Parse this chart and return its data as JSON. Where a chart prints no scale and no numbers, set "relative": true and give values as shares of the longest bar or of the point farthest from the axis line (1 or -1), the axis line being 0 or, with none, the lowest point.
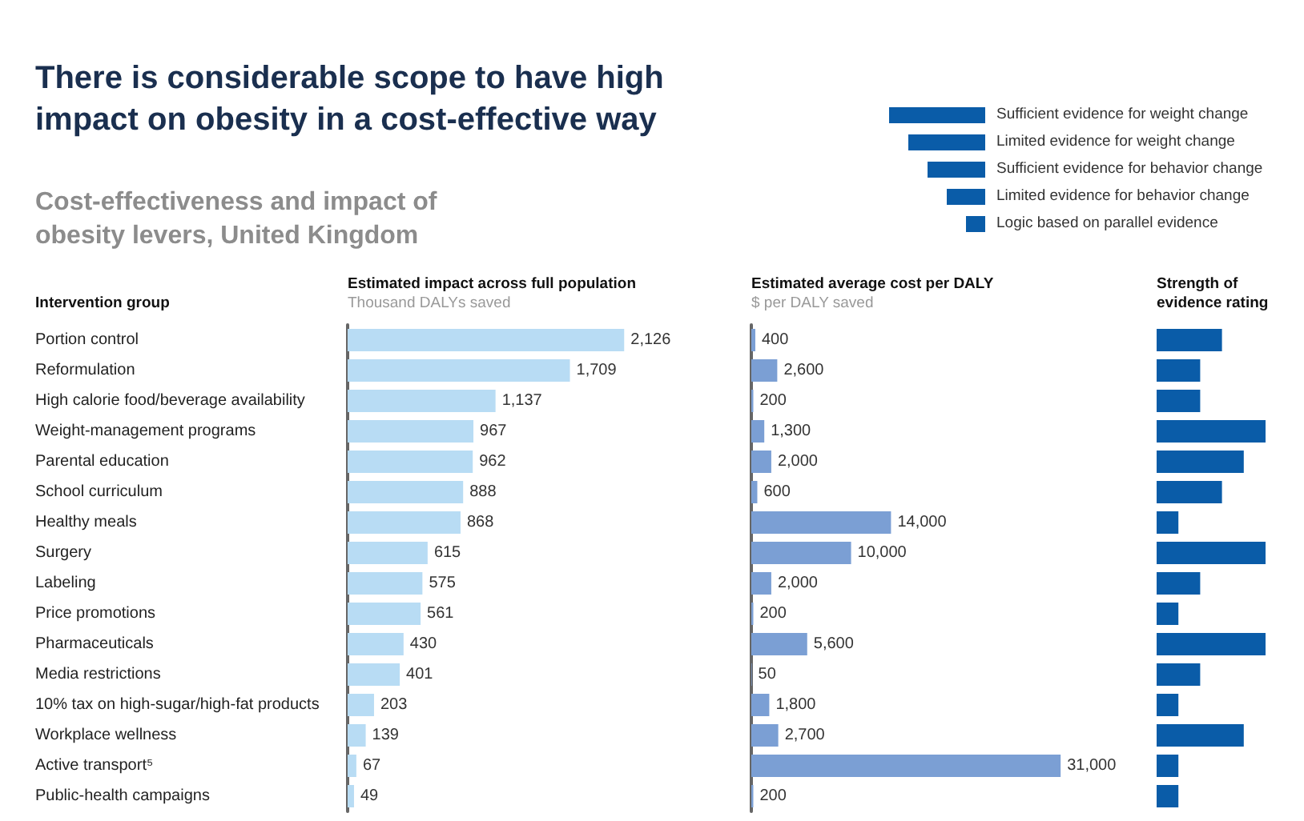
{
  "chart_data": [
    {
      "type": "bar",
      "orientation": "horizontal",
      "title": "There is considerable scope to have high impact on obesity in a cost-effective way",
      "subtitle": "Cost-effectiveness and impact of obesity levers, United Kingdom",
      "ylabel": "Intervention group",
      "xlabel": "Estimated impact across full population",
      "annotations": [
        "Thousand DALYs saved"
      ],
      "categories": [
        "Portion control",
        "Reformulation",
        "High calorie food/beverage availability",
        "Weight-management programs",
        "Parental education",
        "School curriculum",
        "Healthy meals",
        "Surgery",
        "Labeling",
        "Price promotions",
        "Pharmaceuticals",
        "Media restrictions",
        "10% tax on high-sugar/high-fat products",
        "Workplace wellness",
        "Active transport⁵",
        "Public-health campaigns"
      ],
      "values": [
        2126,
        1709,
        1137,
        967,
        962,
        888,
        868,
        615,
        575,
        561,
        430,
        401,
        203,
        139,
        67,
        49
      ],
      "value_labels": [
        "2,126",
        "1,709",
        "1,137",
        "967",
        "962",
        "888",
        "868",
        "615",
        "575",
        "561",
        "430",
        "401",
        "203",
        "139",
        "67",
        "49"
      ],
      "color": "#b8dcf4",
      "tick_labels": "y"
    },
    {
      "type": "bar",
      "orientation": "horizontal",
      "xlabel": "Estimated average cost per DALY",
      "annotations": [
        "$ per DALY saved"
      ],
      "categories": [
        null,
        null,
        null,
        null,
        null,
        null,
        null,
        null,
        null,
        null,
        null,
        null,
        null,
        null,
        null,
        null
      ],
      "values": [
        400,
        2600,
        200,
        1300,
        2000,
        600,
        14000,
        10000,
        2000,
        200,
        5600,
        50,
        1800,
        2700,
        31000,
        200
      ],
      "value_labels": [
        "400",
        "2,600",
        "200",
        "1,300",
        "2,000",
        "600",
        "14,000",
        "10,000",
        "2,000",
        "200",
        "5,600",
        "50",
        "1,800",
        "2,700",
        "31,000",
        "200"
      ],
      "color": "#7b9fd4",
      "tick_labels": false
    },
    {
      "type": "bar",
      "orientation": "horizontal",
      "relative": true,
      "xlabel": "Strength of evidence rating",
      "annotations": [
        "Sufficient evidence for weight change",
        "Limited evidence for weight change",
        "Sufficient evidence for behavior change",
        "Limited evidence for behavior change",
        "Logic based on parallel evidence"
      ],
      "categories": [
        null,
        null,
        null,
        null,
        null,
        null,
        null,
        null,
        null,
        null,
        null,
        null,
        null,
        null,
        null,
        null
      ],
      "values": [
        0.6,
        0.4,
        0.4,
        1,
        0.8,
        0.6,
        0.2,
        1,
        0.4,
        0.2,
        1,
        0.4,
        0.2,
        0.8,
        0.2,
        0.2
      ],
      "color": "#0a5ca8",
      "tick_labels": false
    }
  ]
}
